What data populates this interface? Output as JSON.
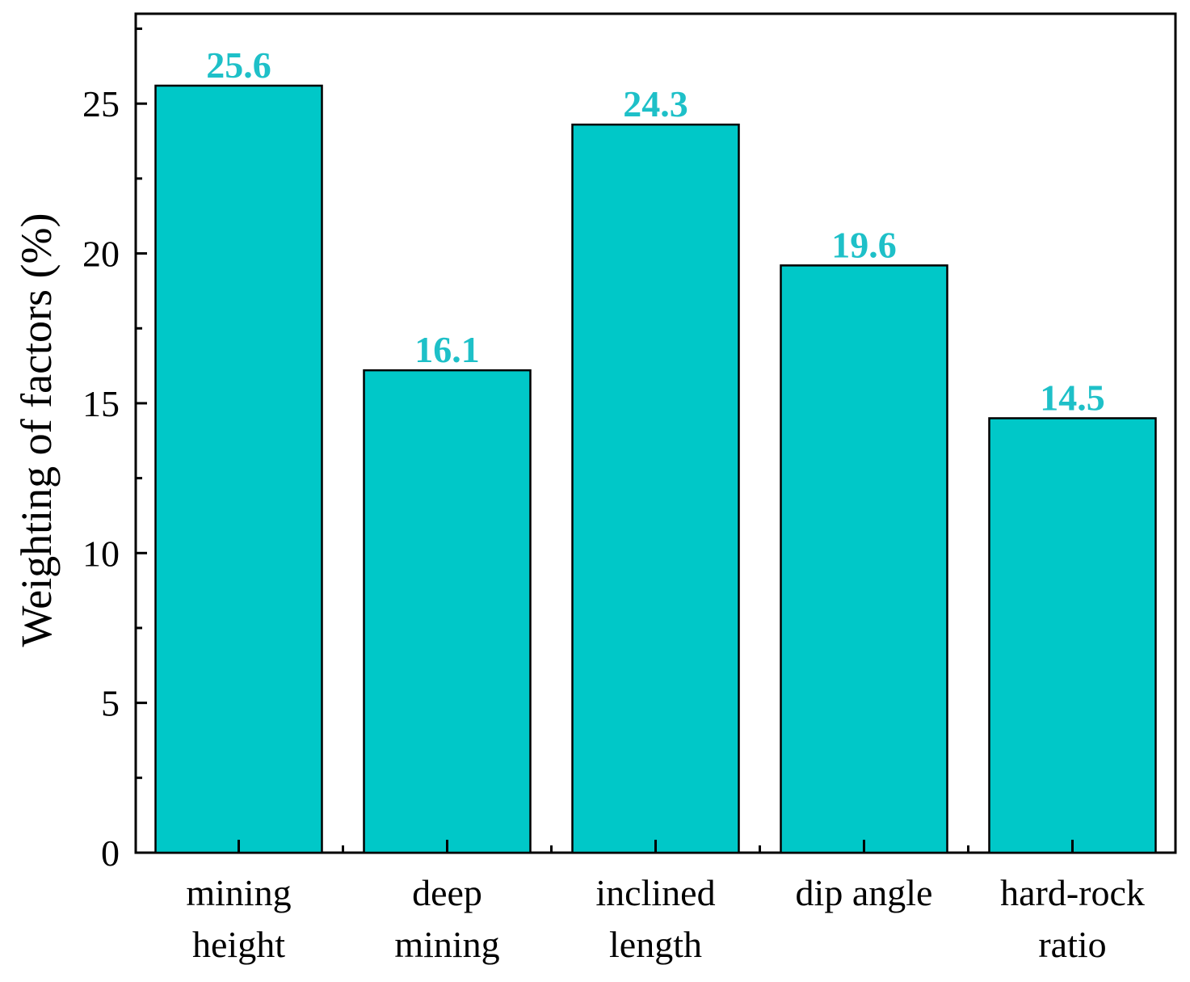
{
  "chart_data": {
    "type": "bar",
    "categories": [
      [
        "mining",
        "height"
      ],
      [
        "deep",
        "mining"
      ],
      [
        "inclined",
        "length"
      ],
      [
        "dip angle"
      ],
      [
        "hard-rock",
        "ratio"
      ]
    ],
    "values": [
      25.6,
      16.1,
      24.3,
      19.6,
      14.5
    ],
    "value_labels": [
      "25.6",
      "16.1",
      "24.3",
      "19.6",
      "14.5"
    ],
    "ylabel": "Weighting of factors (%)",
    "xlabel": "",
    "ylim": [
      0,
      28
    ],
    "yticks": [
      0,
      5,
      10,
      15,
      20,
      25
    ],
    "bar_color": "#00c8c8",
    "label_color": "#1ec0c8",
    "grid": false
  }
}
